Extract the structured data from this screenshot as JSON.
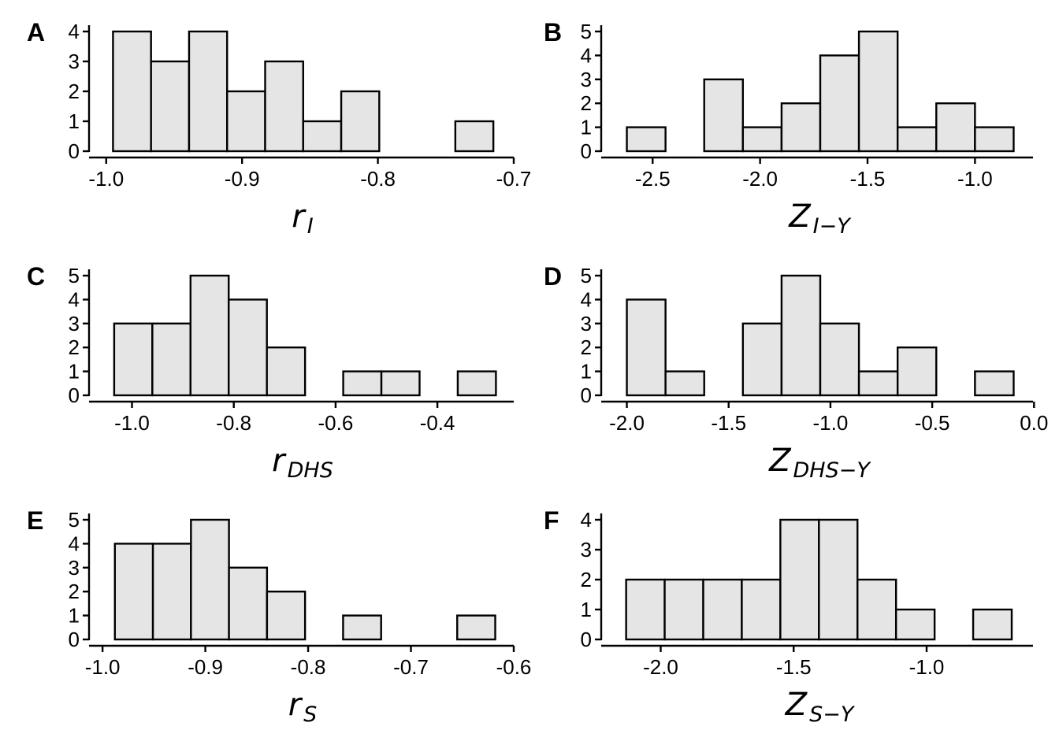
{
  "chart_data": [
    {
      "type": "bar",
      "panel": "A",
      "xlabel": {
        "main": "r",
        "sub": "I"
      },
      "bins": [
        {
          "x0": -0.995,
          "x1": -0.967,
          "count": 4
        },
        {
          "x0": -0.967,
          "x1": -0.939,
          "count": 3
        },
        {
          "x0": -0.939,
          "x1": -0.911,
          "count": 4
        },
        {
          "x0": -0.911,
          "x1": -0.883,
          "count": 2
        },
        {
          "x0": -0.883,
          "x1": -0.855,
          "count": 3
        },
        {
          "x0": -0.855,
          "x1": -0.827,
          "count": 1
        },
        {
          "x0": -0.827,
          "x1": -0.799,
          "count": 2
        },
        {
          "x0": -0.799,
          "x1": -0.771,
          "count": 0
        },
        {
          "x0": -0.771,
          "x1": -0.743,
          "count": 0
        },
        {
          "x0": -0.743,
          "x1": -0.715,
          "count": 1
        }
      ],
      "xticks": [
        -1.0,
        -0.9,
        -0.8,
        -0.7
      ],
      "xtick_labels": [
        "-1.0",
        "-0.9",
        "-0.8",
        "-0.7"
      ],
      "xlim": [
        -1.008,
        -0.7
      ],
      "yticks": [
        0,
        1,
        2,
        3,
        4
      ],
      "ytick_labels": [
        "0",
        "1",
        "2",
        "3",
        "4"
      ],
      "ylim": [
        0,
        4
      ]
    },
    {
      "type": "bar",
      "panel": "B",
      "xlabel": {
        "main": "Z",
        "sub": "I−Y"
      },
      "bins": [
        {
          "x0": -2.62,
          "x1": -2.44,
          "count": 1
        },
        {
          "x0": -2.44,
          "x1": -2.26,
          "count": 0
        },
        {
          "x0": -2.26,
          "x1": -2.08,
          "count": 3
        },
        {
          "x0": -2.08,
          "x1": -1.9,
          "count": 1
        },
        {
          "x0": -1.9,
          "x1": -1.72,
          "count": 2
        },
        {
          "x0": -1.72,
          "x1": -1.54,
          "count": 4
        },
        {
          "x0": -1.54,
          "x1": -1.36,
          "count": 5
        },
        {
          "x0": -1.36,
          "x1": -1.18,
          "count": 1
        },
        {
          "x0": -1.18,
          "x1": -1.0,
          "count": 2
        },
        {
          "x0": -1.0,
          "x1": -0.82,
          "count": 1
        }
      ],
      "xticks": [
        -2.5,
        -2.0,
        -1.5,
        -1.0
      ],
      "xtick_labels": [
        "-2.5",
        "-2.0",
        "-1.5",
        "-1.0"
      ],
      "xlim": [
        -2.71,
        -0.73
      ],
      "yticks": [
        0,
        1,
        2,
        3,
        4,
        5
      ],
      "ytick_labels": [
        "0",
        "1",
        "2",
        "3",
        "4",
        "5"
      ],
      "ylim": [
        0,
        5
      ]
    },
    {
      "type": "bar",
      "panel": "C",
      "xlabel": {
        "main": "r",
        "sub": "DHS"
      },
      "bins": [
        {
          "x0": -1.035,
          "x1": -0.96,
          "count": 3
        },
        {
          "x0": -0.96,
          "x1": -0.885,
          "count": 3
        },
        {
          "x0": -0.885,
          "x1": -0.81,
          "count": 5
        },
        {
          "x0": -0.81,
          "x1": -0.735,
          "count": 4
        },
        {
          "x0": -0.735,
          "x1": -0.66,
          "count": 2
        },
        {
          "x0": -0.66,
          "x1": -0.585,
          "count": 0
        },
        {
          "x0": -0.585,
          "x1": -0.51,
          "count": 1
        },
        {
          "x0": -0.51,
          "x1": -0.435,
          "count": 1
        },
        {
          "x0": -0.435,
          "x1": -0.36,
          "count": 0
        },
        {
          "x0": -0.36,
          "x1": -0.285,
          "count": 1
        }
      ],
      "xticks": [
        -1.0,
        -0.8,
        -0.6,
        -0.4
      ],
      "xtick_labels": [
        "-1.0",
        "-0.8",
        "-0.6",
        "-0.4"
      ],
      "xlim": [
        -1.072,
        -0.25
      ],
      "yticks": [
        0,
        1,
        2,
        3,
        4,
        5
      ],
      "ytick_labels": [
        "0",
        "1",
        "2",
        "3",
        "4",
        "5"
      ],
      "ylim": [
        0,
        5
      ]
    },
    {
      "type": "bar",
      "panel": "D",
      "xlabel": {
        "main": "Z",
        "sub": "DHS−Y"
      },
      "bins": [
        {
          "x0": -2.0,
          "x1": -1.81,
          "count": 4
        },
        {
          "x0": -1.81,
          "x1": -1.62,
          "count": 1
        },
        {
          "x0": -1.62,
          "x1": -1.43,
          "count": 0
        },
        {
          "x0": -1.43,
          "x1": -1.24,
          "count": 3
        },
        {
          "x0": -1.24,
          "x1": -1.05,
          "count": 5
        },
        {
          "x0": -1.05,
          "x1": -0.86,
          "count": 3
        },
        {
          "x0": -0.86,
          "x1": -0.67,
          "count": 1
        },
        {
          "x0": -0.67,
          "x1": -0.48,
          "count": 2
        },
        {
          "x0": -0.48,
          "x1": -0.29,
          "count": 0
        },
        {
          "x0": -0.29,
          "x1": -0.1,
          "count": 1
        }
      ],
      "xticks": [
        -2.0,
        -1.5,
        -1.0,
        -0.5,
        0.0
      ],
      "xtick_labels": [
        "-2.0",
        "-1.5",
        "-1.0",
        "-0.5",
        "0.0"
      ],
      "xlim": [
        -2.095,
        -0.005
      ],
      "yticks": [
        0,
        1,
        2,
        3,
        4,
        5
      ],
      "ytick_labels": [
        "0",
        "1",
        "2",
        "3",
        "4",
        "5"
      ],
      "ylim": [
        0,
        5
      ]
    },
    {
      "type": "bar",
      "panel": "E",
      "xlabel": {
        "main": "r",
        "sub": "S"
      },
      "bins": [
        {
          "x0": -0.988,
          "x1": -0.951,
          "count": 4
        },
        {
          "x0": -0.951,
          "x1": -0.914,
          "count": 4
        },
        {
          "x0": -0.914,
          "x1": -0.877,
          "count": 5
        },
        {
          "x0": -0.877,
          "x1": -0.84,
          "count": 3
        },
        {
          "x0": -0.84,
          "x1": -0.803,
          "count": 2
        },
        {
          "x0": -0.803,
          "x1": -0.766,
          "count": 0
        },
        {
          "x0": -0.766,
          "x1": -0.729,
          "count": 1
        },
        {
          "x0": -0.729,
          "x1": -0.692,
          "count": 0
        },
        {
          "x0": -0.692,
          "x1": -0.655,
          "count": 0
        },
        {
          "x0": -0.655,
          "x1": -0.618,
          "count": 1
        }
      ],
      "xticks": [
        -1.0,
        -0.9,
        -0.8,
        -0.7,
        -0.6
      ],
      "xtick_labels": [
        "-1.0",
        "-0.9",
        "-0.8",
        "-0.7",
        "-0.6"
      ],
      "xlim": [
        -1.007,
        -0.6
      ],
      "yticks": [
        0,
        1,
        2,
        3,
        4,
        5
      ],
      "ytick_labels": [
        "0",
        "1",
        "2",
        "3",
        "4",
        "5"
      ],
      "ylim": [
        0,
        5
      ]
    },
    {
      "type": "bar",
      "panel": "F",
      "xlabel": {
        "main": "Z",
        "sub": "S−Y"
      },
      "bins": [
        {
          "x0": -2.13,
          "x1": -1.985,
          "count": 2
        },
        {
          "x0": -1.985,
          "x1": -1.84,
          "count": 2
        },
        {
          "x0": -1.84,
          "x1": -1.695,
          "count": 2
        },
        {
          "x0": -1.695,
          "x1": -1.55,
          "count": 2
        },
        {
          "x0": -1.55,
          "x1": -1.405,
          "count": 4
        },
        {
          "x0": -1.405,
          "x1": -1.26,
          "count": 4
        },
        {
          "x0": -1.26,
          "x1": -1.115,
          "count": 2
        },
        {
          "x0": -1.115,
          "x1": -0.97,
          "count": 1
        },
        {
          "x0": -0.97,
          "x1": -0.825,
          "count": 0
        },
        {
          "x0": -0.825,
          "x1": -0.68,
          "count": 1
        }
      ],
      "xticks": [
        -2.0,
        -1.5,
        -1.0
      ],
      "xtick_labels": [
        "-2.0",
        "-1.5",
        "-1.0"
      ],
      "xlim": [
        -2.2,
        -0.6
      ],
      "yticks": [
        0,
        1,
        2,
        3,
        4
      ],
      "ytick_labels": [
        "0",
        "1",
        "2",
        "3",
        "4"
      ],
      "ylim": [
        0,
        4
      ]
    }
  ],
  "style": {
    "bar_fill": "#e5e5e5",
    "bar_stroke": "#000000",
    "axis_color": "#000000"
  }
}
